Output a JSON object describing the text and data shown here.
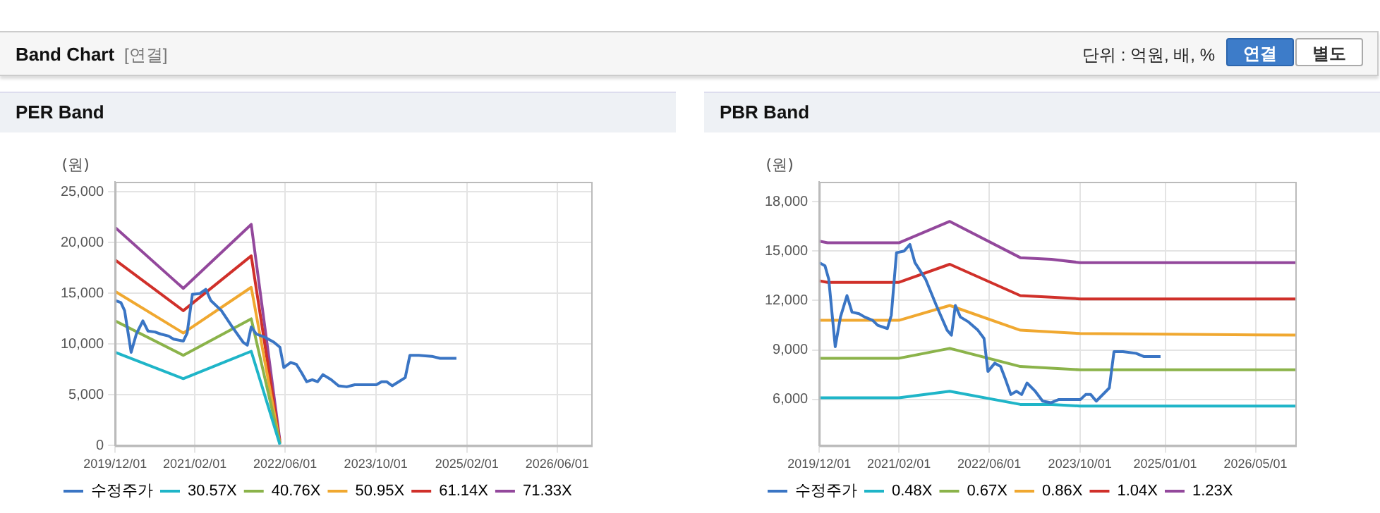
{
  "chart_data": [
    {
      "type": "line",
      "title": "PER Band",
      "ylabel": "(원)",
      "annotations": [
        "Band Chart",
        "[연결]",
        "단위 : 억원, 배, %",
        "연결",
        "별도"
      ],
      "legend": "bottom",
      "grid": true,
      "marker": "none",
      "line_style": "solid",
      "xlim": [
        "2019-12-01",
        "2026-12-01"
      ],
      "xticks": [
        {
          "value": "2019-12-01",
          "label": "2019/12/01"
        },
        {
          "value": "2021-02-01",
          "label": "2021/02/01"
        },
        {
          "value": "2022-06-01",
          "label": "2022/06/01"
        },
        {
          "value": "2023-10-01",
          "label": "2023/10/01"
        },
        {
          "value": "2025-02-01",
          "label": "2025/02/01"
        },
        {
          "value": "2026-06-01",
          "label": "2026/06/01"
        }
      ],
      "ylim": [
        0,
        26000
      ],
      "yticks": [
        0,
        {
          "value": 5000,
          "label": "5,000"
        },
        {
          "value": 10000,
          "label": "10,000"
        },
        {
          "value": 15000,
          "label": "15,000"
        },
        {
          "value": 20000,
          "label": "20,000"
        },
        {
          "value": 25000,
          "label": "25,000"
        }
      ],
      "series": [
        {
          "name": "수정주가",
          "color": "#3a75c4",
          "x": [
            "2019-12-01",
            "2020-01-01",
            "2020-01-21",
            "2020-02-25",
            "2020-03-24",
            "2020-04-28",
            "2020-05-25",
            "2020-07-02",
            "2020-08-01",
            "2020-09-13",
            "2020-10-10",
            "2020-12-01",
            "2020-12-22",
            "2021-01-19",
            "2021-03-01",
            "2021-04-01",
            "2021-04-28",
            "2021-06-24",
            "2021-08-21",
            "2021-10-18",
            "2021-11-10",
            "2021-12-01",
            "2021-12-28",
            "2022-02-10",
            "2022-04-01",
            "2022-05-04",
            "2022-05-25",
            "2022-07-01",
            "2022-08-01",
            "2022-08-28",
            "2022-09-25",
            "2022-10-25",
            "2022-11-22",
            "2022-12-21",
            "2023-02-03",
            "2023-03-15",
            "2023-04-28",
            "2023-06-10",
            "2023-10-04",
            "2023-11-01",
            "2023-11-28",
            "2023-12-28",
            "2024-02-10",
            "2024-03-07",
            "2024-04-01",
            "2024-05-19",
            "2024-07-28",
            "2024-09-10",
            "2024-12-07"
          ],
          "values": [
            14300,
            14100,
            13300,
            9200,
            11000,
            12300,
            11300,
            11200,
            11000,
            10800,
            10500,
            10300,
            11100,
            14900,
            15000,
            15400,
            14300,
            13300,
            11700,
            10200,
            9900,
            11700,
            11000,
            10700,
            10200,
            9700,
            7700,
            8200,
            8000,
            7200,
            6300,
            6500,
            6300,
            7000,
            6500,
            5900,
            5800,
            6000,
            6000,
            6300,
            6300,
            5900,
            6400,
            6700,
            8900,
            8900,
            8800,
            8600,
            8600
          ]
        },
        {
          "name": "30.57X",
          "color": "#1fb5c8",
          "x": [
            "2019-12-01",
            "2020-12-01",
            "2021-12-01",
            "2022-05-04"
          ],
          "values": [
            9200,
            6600,
            9300,
            100
          ]
        },
        {
          "name": "40.76X",
          "color": "#8bb34a",
          "x": [
            "2019-12-01",
            "2020-12-01",
            "2021-12-01",
            "2022-05-04"
          ],
          "values": [
            12300,
            8900,
            12500,
            200
          ]
        },
        {
          "name": "50.95X",
          "color": "#f0a830",
          "x": [
            "2019-12-01",
            "2020-12-01",
            "2021-12-01",
            "2022-05-04"
          ],
          "values": [
            15200,
            11100,
            15600,
            200
          ]
        },
        {
          "name": "61.14X",
          "color": "#d0302a",
          "x": [
            "2019-12-01",
            "2020-12-01",
            "2021-12-01",
            "2022-05-04"
          ],
          "values": [
            18300,
            13300,
            18700,
            300
          ]
        },
        {
          "name": "71.33X",
          "color": "#93489c",
          "x": [
            "2019-12-01",
            "2020-12-01",
            "2021-12-01",
            "2022-05-04"
          ],
          "values": [
            21500,
            15500,
            21800,
            500
          ]
        }
      ]
    },
    {
      "type": "line",
      "title": "PBR Band",
      "ylabel": "(원)",
      "legend": "bottom",
      "grid": true,
      "marker": "none",
      "line_style": "solid",
      "xlim": [
        "2019-12-01",
        "2026-12-01"
      ],
      "xticks": [
        {
          "value": "2019-12-01",
          "label": "2019/12/01"
        },
        {
          "value": "2021-02-01",
          "label": "2021/02/01"
        },
        {
          "value": "2022-06-01",
          "label": "2022/06/01"
        },
        {
          "value": "2023-10-01",
          "label": "2023/10/01"
        },
        {
          "value": "2025-01-01",
          "label": "2025/01/01"
        },
        {
          "value": "2026-05-01",
          "label": "2026/05/01"
        }
      ],
      "ylim": [
        3200,
        19200
      ],
      "yticks": [
        {
          "value": 6000,
          "label": "6,000"
        },
        {
          "value": 9000,
          "label": "9,000"
        },
        {
          "value": 12000,
          "label": "12,000"
        },
        {
          "value": 15000,
          "label": "15,000"
        },
        {
          "value": 18000,
          "label": "18,000"
        }
      ],
      "series": [
        {
          "name": "수정주가",
          "color": "#3a75c4",
          "x": [
            "2019-12-01",
            "2020-01-01",
            "2020-01-21",
            "2020-02-25",
            "2020-03-24",
            "2020-04-28",
            "2020-05-25",
            "2020-07-02",
            "2020-08-01",
            "2020-09-13",
            "2020-10-10",
            "2020-12-01",
            "2020-12-22",
            "2021-01-19",
            "2021-03-01",
            "2021-04-01",
            "2021-04-28",
            "2021-06-24",
            "2021-08-21",
            "2021-10-18",
            "2021-11-10",
            "2021-12-01",
            "2021-12-28",
            "2022-02-10",
            "2022-04-01",
            "2022-05-04",
            "2022-05-25",
            "2022-07-01",
            "2022-08-01",
            "2022-08-28",
            "2022-09-25",
            "2022-10-25",
            "2022-11-22",
            "2022-12-21",
            "2023-02-03",
            "2023-03-15",
            "2023-04-28",
            "2023-06-10",
            "2023-10-04",
            "2023-11-01",
            "2023-11-28",
            "2023-12-28",
            "2024-02-10",
            "2024-03-07",
            "2024-04-01",
            "2024-05-19",
            "2024-07-28",
            "2024-09-10",
            "2024-12-07"
          ],
          "values": [
            14300,
            14100,
            13300,
            9200,
            11000,
            12300,
            11300,
            11200,
            11000,
            10800,
            10500,
            10300,
            11100,
            14900,
            15000,
            15400,
            14300,
            13300,
            11700,
            10200,
            9900,
            11700,
            11000,
            10700,
            10200,
            9700,
            7700,
            8200,
            8000,
            7200,
            6300,
            6500,
            6300,
            7000,
            6500,
            5900,
            5800,
            6000,
            6000,
            6300,
            6300,
            5900,
            6400,
            6700,
            8900,
            8900,
            8800,
            8600,
            8600
          ]
        },
        {
          "name": "0.48X",
          "color": "#1fb5c8",
          "x": [
            "2019-12-01",
            "2020-01-15",
            "2021-02-01",
            "2021-11-01",
            "2022-11-15",
            "2023-05-01",
            "2023-10-01",
            "2026-12-01"
          ],
          "values": [
            6100,
            6100,
            6100,
            6500,
            5700,
            5700,
            5600,
            5600
          ]
        },
        {
          "name": "0.67X",
          "color": "#8bb34a",
          "x": [
            "2019-12-01",
            "2020-01-15",
            "2021-02-01",
            "2021-11-01",
            "2022-11-15",
            "2023-05-01",
            "2023-10-01",
            "2026-12-01"
          ],
          "values": [
            8500,
            8500,
            8500,
            9100,
            8000,
            7900,
            7800,
            7800
          ]
        },
        {
          "name": "0.86X",
          "color": "#f0a830",
          "x": [
            "2019-12-01",
            "2020-01-15",
            "2021-02-01",
            "2021-11-01",
            "2022-11-15",
            "2023-05-01",
            "2023-10-01",
            "2026-12-01"
          ],
          "values": [
            10800,
            10800,
            10800,
            11700,
            10200,
            10100,
            10000,
            9900
          ]
        },
        {
          "name": "1.04X",
          "color": "#d0302a",
          "x": [
            "2019-12-01",
            "2020-01-15",
            "2021-02-01",
            "2021-11-01",
            "2022-11-15",
            "2023-05-01",
            "2023-10-01",
            "2026-12-01"
          ],
          "values": [
            13200,
            13100,
            13100,
            14200,
            12300,
            12200,
            12100,
            12100
          ]
        },
        {
          "name": "1.23X",
          "color": "#93489c",
          "x": [
            "2019-12-01",
            "2020-01-15",
            "2021-02-01",
            "2021-11-01",
            "2022-11-15",
            "2023-05-01",
            "2023-10-01",
            "2026-12-01"
          ],
          "values": [
            15600,
            15500,
            15500,
            16800,
            14600,
            14500,
            14300,
            14300
          ]
        }
      ]
    }
  ]
}
